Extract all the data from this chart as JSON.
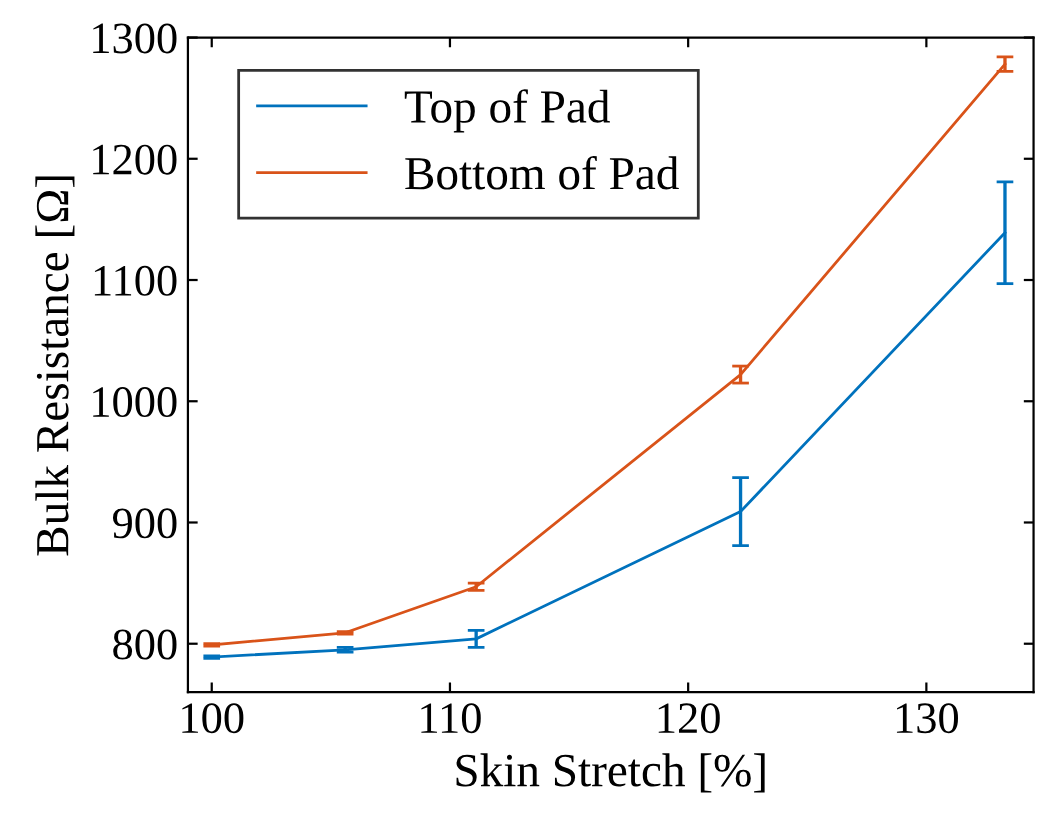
{
  "chart_data": {
    "type": "line",
    "xlabel": "Skin Stretch [%]",
    "ylabel": "Bulk Resistance [Ω]",
    "x": [
      100,
      105.6,
      111.1,
      122.2,
      133.3
    ],
    "series": [
      {
        "name": "Top of Pad",
        "color": "#0072bd",
        "values": [
          789,
          795,
          804,
          909,
          1139
        ],
        "errors": [
          1,
          2,
          7,
          28,
          42
        ]
      },
      {
        "name": "Bottom of Pad",
        "color": "#d95319",
        "values": [
          799,
          809,
          847,
          1022,
          1278
        ],
        "errors": [
          1,
          1,
          3,
          7,
          6
        ]
      }
    ],
    "xlim": [
      99,
      134.5
    ],
    "xticks": [
      100,
      110,
      120,
      130
    ],
    "ylim": [
      760,
      1300
    ],
    "yticks": [
      800,
      900,
      1000,
      1100,
      1200,
      1300
    ],
    "grid": false,
    "legend": "top left",
    "marker": "none",
    "line_style": "solid"
  }
}
